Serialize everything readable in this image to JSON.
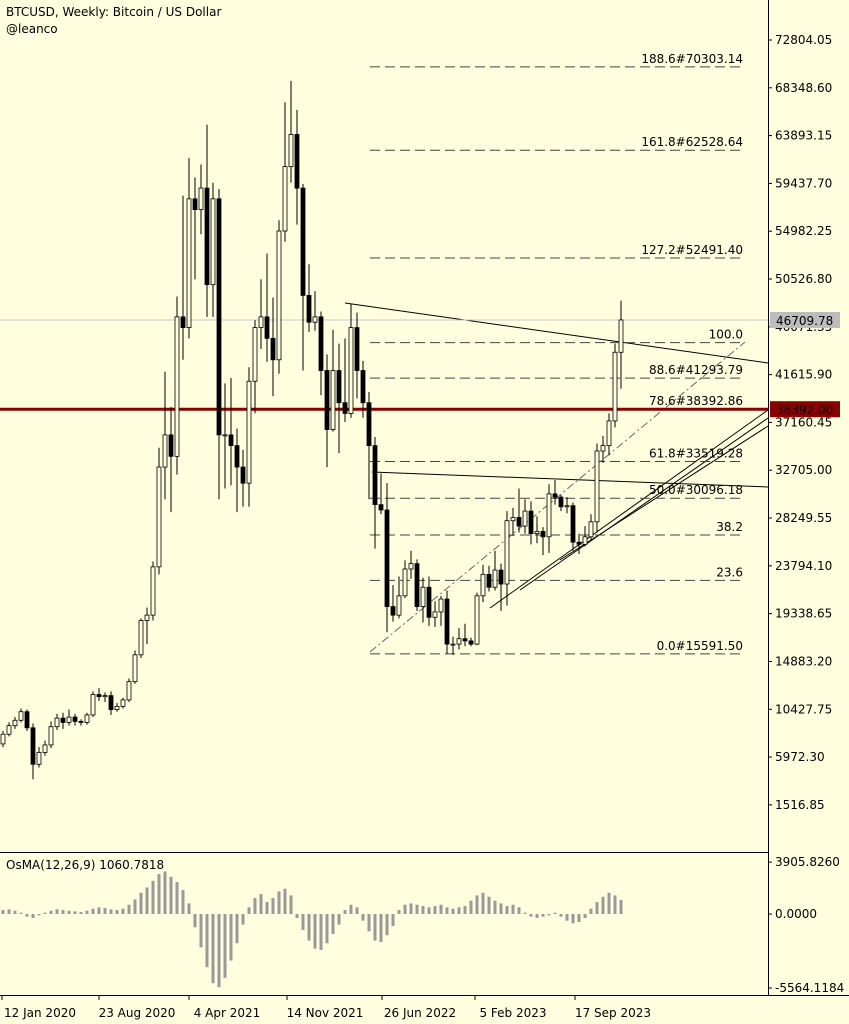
{
  "chart_data": {
    "type": "candlestick",
    "title": "BTCUSD, Weekly:  Bitcoin / US Dollar",
    "subtitle": "@leanco",
    "open": [
      7200,
      8100,
      8900,
      9400,
      10200,
      8700,
      5300,
      6400,
      7100,
      8800,
      9600,
      9200,
      9700,
      9300,
      9200,
      9900,
      11800,
      11600,
      11700,
      10400,
      10700,
      11300,
      13000,
      15500,
      18700,
      19200,
      23700,
      33000,
      36000,
      34000,
      47000,
      46000,
      58000,
      57000,
      59000,
      50000,
      58000,
      36000,
      36000,
      35000,
      33000,
      31500,
      41000,
      46000,
      47000,
      45000,
      43000,
      55000,
      61000,
      64000,
      59000,
      49000,
      46500,
      47000,
      42000,
      36500,
      42000,
      39000,
      38000,
      46000,
      42000,
      39000,
      35000,
      29500,
      29000,
      20000,
      19200,
      21000,
      23500,
      24000,
      20000,
      21800,
      19000,
      19500,
      20700,
      16500,
      16500,
      17000,
      16800,
      16500,
      21000,
      23000,
      21800,
      23400,
      22100,
      28000,
      28300,
      27500,
      28900,
      26800,
      27000,
      26500,
      30500,
      30200,
      29300,
      29400,
      26000,
      25800,
      26500,
      27900,
      34500,
      35000,
      37300,
      43700
    ],
    "high": [
      8400,
      9200,
      9700,
      10500,
      10400,
      9100,
      6900,
      7500,
      9300,
      10000,
      10100,
      10400,
      10000,
      9500,
      10100,
      12100,
      12400,
      12000,
      12100,
      11000,
      11500,
      13300,
      15900,
      18900,
      19900,
      24200,
      34800,
      41900,
      38600,
      48900,
      58300,
      61800,
      60000,
      61200,
      64900,
      59500,
      58900,
      40800,
      41300,
      36600,
      34600,
      42300,
      46700,
      50500,
      52900,
      48800,
      56000,
      67000,
      69000,
      66300,
      59400,
      51900,
      49400,
      47500,
      43500,
      45800,
      44500,
      45000,
      48200,
      47400,
      42900,
      40000,
      35800,
      32400,
      31500,
      22000,
      22800,
      24300,
      25200,
      24400,
      22700,
      22800,
      20500,
      21000,
      21500,
      17200,
      18000,
      18400,
      17100,
      21300,
      23900,
      23800,
      25200,
      24000,
      28900,
      29200,
      31000,
      30000,
      29800,
      28400,
      27400,
      31400,
      31800,
      30400,
      30200,
      29700,
      26800,
      27500,
      28600,
      35200,
      35900,
      38000,
      44500,
      48500
    ],
    "low": [
      6900,
      7900,
      8600,
      9200,
      8400,
      3900,
      5000,
      6100,
      6800,
      8500,
      8600,
      8900,
      8900,
      8900,
      9000,
      9700,
      11200,
      11100,
      9900,
      10200,
      10500,
      11100,
      12800,
      15200,
      16500,
      18700,
      23000,
      30000,
      28800,
      32300,
      43000,
      45000,
      50500,
      54700,
      47000,
      47000,
      30000,
      31000,
      31300,
      28800,
      29300,
      29300,
      38000,
      44000,
      42800,
      39600,
      41700,
      54000,
      59500,
      55600,
      42000,
      45600,
      45700,
      39700,
      33000,
      36300,
      34300,
      37200,
      37600,
      39400,
      37600,
      30000,
      25400,
      28600,
      17600,
      18600,
      18900,
      20800,
      22600,
      19600,
      18500,
      18200,
      18100,
      18200,
      15600,
      15500,
      16000,
      16300,
      16300,
      16400,
      20400,
      21400,
      21500,
      19600,
      20100,
      26600,
      26900,
      26800,
      25800,
      25900,
      24800,
      25000,
      29500,
      28900,
      28700,
      25200,
      24900,
      25600,
      26200,
      26900,
      33400,
      34100,
      36700,
      40300
    ],
    "close": [
      8100,
      8900,
      9400,
      10200,
      8700,
      5300,
      6400,
      7100,
      8800,
      9600,
      9200,
      9700,
      9300,
      9200,
      9900,
      11800,
      11600,
      11700,
      10400,
      10700,
      11300,
      13000,
      15500,
      18700,
      19200,
      23700,
      33000,
      36000,
      34000,
      47000,
      46000,
      58000,
      57000,
      59000,
      50000,
      58000,
      36000,
      36000,
      35000,
      33000,
      31500,
      41000,
      46000,
      47000,
      45000,
      43000,
      55000,
      61000,
      64000,
      59000,
      49000,
      46500,
      47000,
      42000,
      36500,
      42000,
      39000,
      38000,
      46000,
      42000,
      39000,
      35000,
      29500,
      29000,
      20000,
      19200,
      21000,
      23500,
      24000,
      20000,
      21800,
      19000,
      19500,
      20700,
      16500,
      16500,
      17000,
      16800,
      16500,
      21000,
      23000,
      21800,
      23400,
      22100,
      28000,
      28300,
      27500,
      28900,
      26800,
      27000,
      26500,
      30500,
      30200,
      29300,
      29400,
      26000,
      25800,
      26500,
      27900,
      34500,
      35000,
      37300,
      43700,
      46709.78
    ],
    "ylim": [
      -2876,
      76532
    ],
    "yticks": [
      72804.05,
      {
        "value": 68348.6,
        "label": "68348.60"
      },
      63893.15,
      {
        "value": 59437.7,
        "label": "59437.70"
      },
      54982.25,
      {
        "value": 50526.8,
        "label": "50526.80"
      },
      46071.35,
      {
        "value": 41615.9,
        "label": "41615.90"
      },
      37160.45,
      {
        "value": 32705,
        "label": "32705.00"
      },
      28249.55,
      {
        "value": 23794.1,
        "label": "23794.10"
      },
      19338.65,
      {
        "value": 14883.2,
        "label": "14883.20"
      },
      10427.75,
      {
        "value": 5972.3,
        "label": "5972.30"
      },
      1516.85
    ],
    "last_price": {
      "value": 46709.78,
      "label": "46709.78"
    },
    "level": {
      "value": 38392,
      "label": "38392.00",
      "color": "#8b0000"
    },
    "fib_levels": [
      {
        "value": 70303.14,
        "label": "188.6#70303.14"
      },
      {
        "value": 62528.64,
        "label": "161.8#62528.64"
      },
      {
        "value": 52491.4,
        "label": "127.2#52491.40"
      },
      {
        "value": 44600,
        "label": "100.0"
      },
      {
        "value": 41293.79,
        "label": "88.6#41293.79"
      },
      {
        "value": 38392.86,
        "label": "78.6#38392.86"
      },
      {
        "value": 33519.28,
        "label": "61.8#33519.28"
      },
      {
        "value": 30096.18,
        "label": "50.0#30096.18"
      },
      {
        "value": 26673,
        "label": "38.2"
      },
      {
        "value": 22438,
        "label": "23.6"
      },
      {
        "value": 15591.5,
        "label": "0.0#15591.50"
      }
    ],
    "xtick_labels": [
      "12 Jan 2020",
      "23 Aug 2020",
      "4 Apr 2021",
      "14 Nov 2021",
      "26 Jun 2022",
      "5 Feb 2023",
      "17 Sep 2023"
    ],
    "indicator": {
      "title": "OsMA(12,26,9) 1060.7818",
      "color": "#999999",
      "values": [
        300,
        350,
        250,
        100,
        -200,
        -300,
        -100,
        100,
        250,
        350,
        300,
        250,
        200,
        150,
        250,
        400,
        500,
        450,
        350,
        300,
        400,
        700,
        1100,
        1600,
        2000,
        2500,
        3000,
        3200,
        2800,
        2400,
        1800,
        800,
        -1000,
        -2500,
        -4000,
        -5200,
        -5500,
        -4800,
        -3500,
        -2200,
        -800,
        500,
        1200,
        1500,
        900,
        1200,
        1700,
        1900,
        1400,
        -300,
        -1200,
        -2000,
        -2600,
        -2700,
        -2200,
        -1500,
        -800,
        300,
        700,
        500,
        -500,
        -1300,
        -2000,
        -2100,
        -1600,
        -900,
        300,
        700,
        800,
        700,
        600,
        500,
        600,
        700,
        500,
        400,
        500,
        600,
        1000,
        1400,
        1600,
        1300,
        1000,
        800,
        600,
        700,
        500,
        100,
        -200,
        -300,
        -200,
        -100,
        100,
        -200,
        -500,
        -700,
        -600,
        -300,
        400,
        900,
        1300,
        1600,
        1400,
        1060.7818
      ],
      "ylim": [
        -6090,
        4440
      ],
      "yticks": [
        {
          "value": 3905.826,
          "label": "3905.8260"
        },
        {
          "value": 0,
          "label": "0.0000"
        },
        -5564.1184
      ]
    }
  }
}
